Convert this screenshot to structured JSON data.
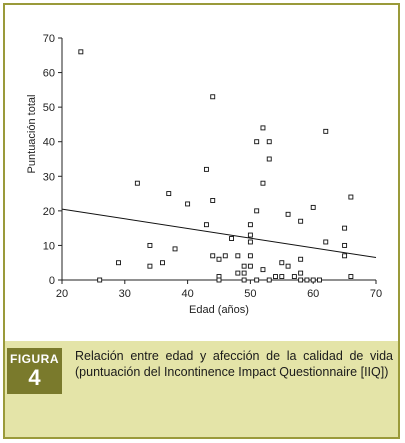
{
  "figure": {
    "tag_word": "FIGURA",
    "tag_number": "4",
    "caption": "Relación entre edad y afección de la calidad de vida (puntuación del Incontinence Impact Questionnaire [IIQ])",
    "colors": {
      "border": "#9a9a3a",
      "caption_bg": "#e4e4a8",
      "tag_bg": "#7a7a2c"
    }
  },
  "chart_data": {
    "type": "scatter",
    "title": "",
    "xlabel": "Edad (años)",
    "ylabel": "Puntuación total",
    "xlim": [
      20,
      70
    ],
    "ylim": [
      0,
      70
    ],
    "xticks": [
      20,
      30,
      40,
      50,
      60,
      70
    ],
    "yticks": [
      0,
      10,
      20,
      30,
      40,
      50,
      60,
      70
    ],
    "grid": false,
    "legend": "none",
    "trendline": {
      "x": [
        20,
        70
      ],
      "y": [
        20.5,
        6.5
      ]
    },
    "points": [
      {
        "x": 23,
        "y": 66
      },
      {
        "x": 26,
        "y": 0
      },
      {
        "x": 29,
        "y": 5
      },
      {
        "x": 32,
        "y": 28
      },
      {
        "x": 34,
        "y": 10
      },
      {
        "x": 34,
        "y": 4
      },
      {
        "x": 36,
        "y": 5
      },
      {
        "x": 37,
        "y": 25
      },
      {
        "x": 38,
        "y": 9
      },
      {
        "x": 40,
        "y": 22
      },
      {
        "x": 43,
        "y": 32
      },
      {
        "x": 43,
        "y": 16
      },
      {
        "x": 44,
        "y": 53
      },
      {
        "x": 44,
        "y": 23
      },
      {
        "x": 44,
        "y": 7
      },
      {
        "x": 45,
        "y": 6
      },
      {
        "x": 45,
        "y": 1
      },
      {
        "x": 45,
        "y": 0
      },
      {
        "x": 46,
        "y": 7
      },
      {
        "x": 47,
        "y": 12
      },
      {
        "x": 48,
        "y": 7
      },
      {
        "x": 48,
        "y": 2
      },
      {
        "x": 49,
        "y": 4
      },
      {
        "x": 49,
        "y": 2
      },
      {
        "x": 49,
        "y": 0
      },
      {
        "x": 50,
        "y": 16
      },
      {
        "x": 50,
        "y": 13
      },
      {
        "x": 50,
        "y": 11
      },
      {
        "x": 50,
        "y": 7
      },
      {
        "x": 50,
        "y": 4
      },
      {
        "x": 51,
        "y": 40
      },
      {
        "x": 51,
        "y": 20
      },
      {
        "x": 51,
        "y": 0
      },
      {
        "x": 52,
        "y": 44
      },
      {
        "x": 52,
        "y": 28
      },
      {
        "x": 52,
        "y": 3
      },
      {
        "x": 53,
        "y": 40
      },
      {
        "x": 53,
        "y": 35
      },
      {
        "x": 53,
        "y": 0
      },
      {
        "x": 54,
        "y": 1
      },
      {
        "x": 55,
        "y": 1
      },
      {
        "x": 55,
        "y": 5
      },
      {
        "x": 56,
        "y": 19
      },
      {
        "x": 56,
        "y": 4
      },
      {
        "x": 57,
        "y": 1
      },
      {
        "x": 58,
        "y": 17
      },
      {
        "x": 58,
        "y": 6
      },
      {
        "x": 58,
        "y": 2
      },
      {
        "x": 58,
        "y": 0
      },
      {
        "x": 59,
        "y": 0
      },
      {
        "x": 60,
        "y": 21
      },
      {
        "x": 60,
        "y": 0
      },
      {
        "x": 61,
        "y": 0
      },
      {
        "x": 62,
        "y": 43
      },
      {
        "x": 62,
        "y": 11
      },
      {
        "x": 65,
        "y": 15
      },
      {
        "x": 65,
        "y": 10
      },
      {
        "x": 65,
        "y": 7
      },
      {
        "x": 66,
        "y": 24
      },
      {
        "x": 66,
        "y": 1
      }
    ]
  }
}
